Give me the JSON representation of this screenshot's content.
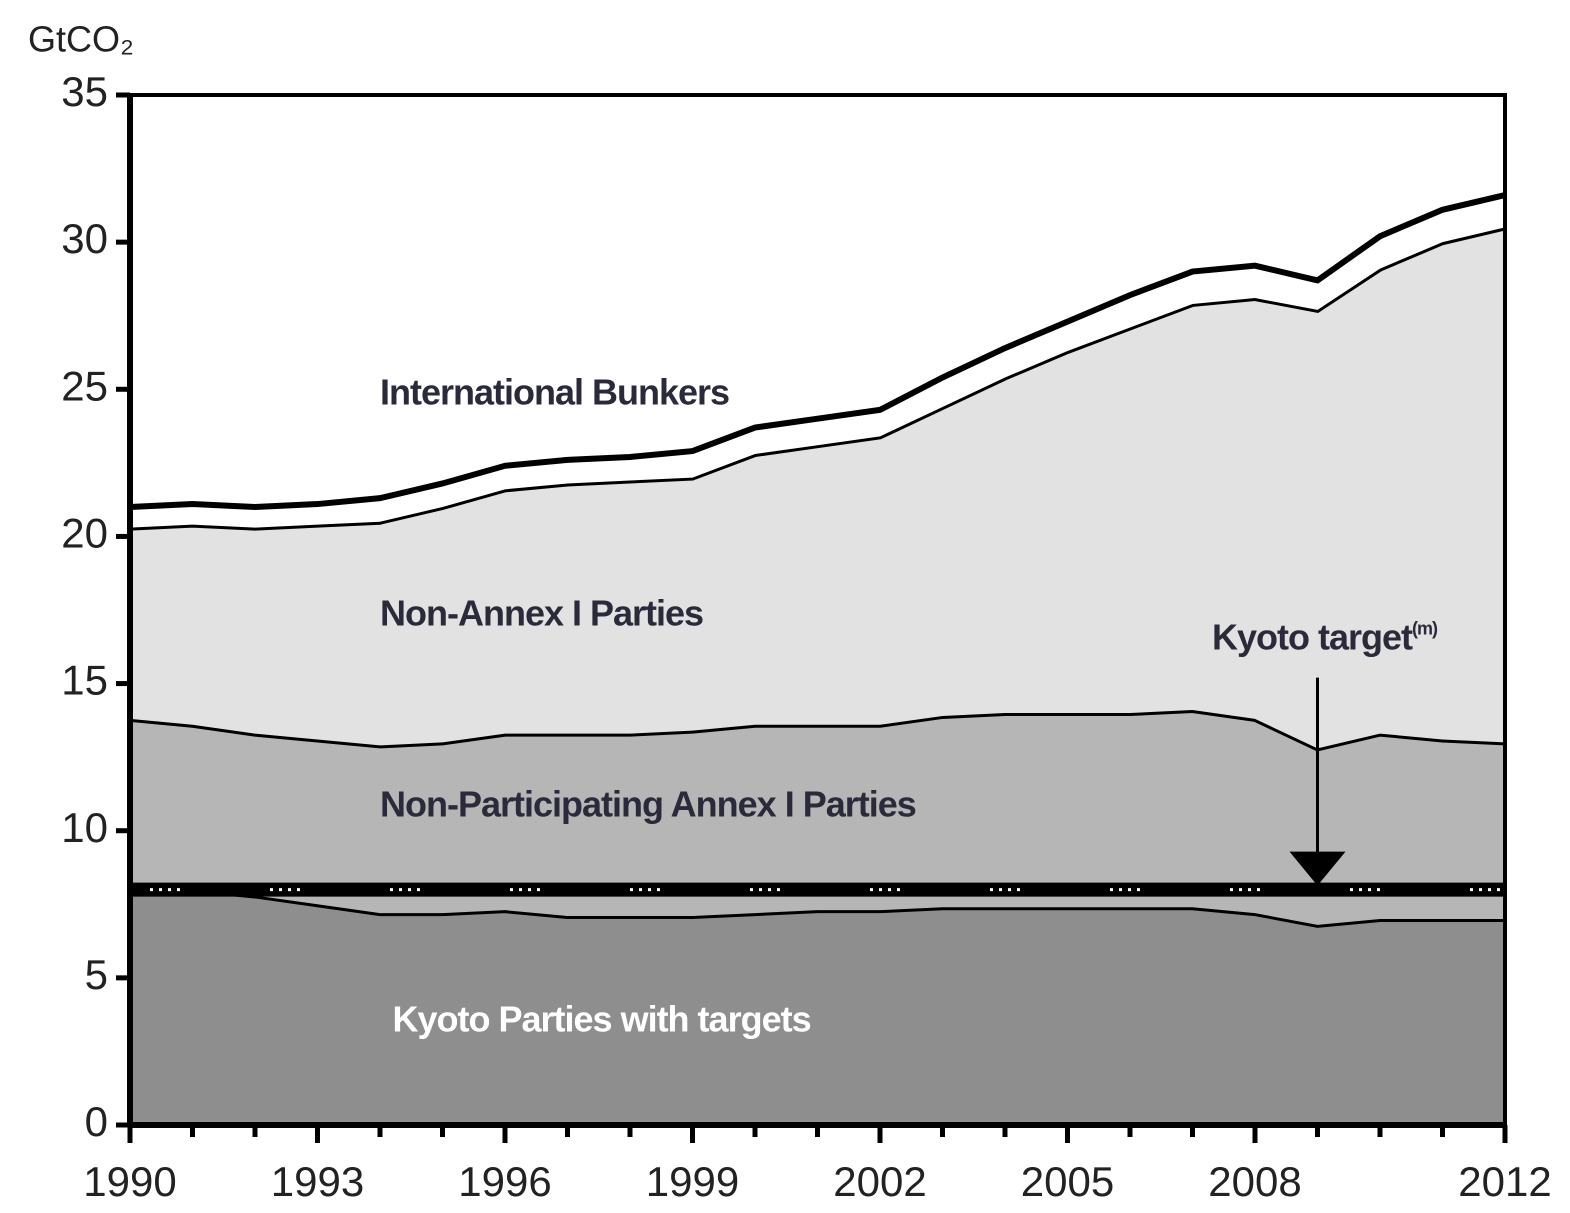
{
  "chart_data": {
    "type": "stacked_area",
    "y_label": "GtCO₂",
    "x": [
      1990,
      1991,
      1992,
      1993,
      1994,
      1995,
      1996,
      1997,
      1998,
      1999,
      2000,
      2001,
      2002,
      2003,
      2004,
      2005,
      2006,
      2007,
      2008,
      2009,
      2010,
      2011,
      2012
    ],
    "series": [
      {
        "name": "Kyoto Parties with targets",
        "color": "#8e8e8e",
        "label_color": "#ffffff",
        "values": [
          8.2,
          8.0,
          7.8,
          7.5,
          7.2,
          7.2,
          7.3,
          7.1,
          7.1,
          7.1,
          7.2,
          7.3,
          7.3,
          7.4,
          7.4,
          7.4,
          7.4,
          7.4,
          7.2,
          6.8,
          7.0,
          7.0,
          7.0
        ]
      },
      {
        "name": "Non-Participating Annex I Parties",
        "color": "#b6b6b6",
        "label_color": "#2a2a3a",
        "values": [
          5.6,
          5.6,
          5.5,
          5.6,
          5.7,
          5.8,
          6.0,
          6.2,
          6.2,
          6.3,
          6.4,
          6.3,
          6.3,
          6.5,
          6.6,
          6.6,
          6.6,
          6.7,
          6.6,
          6.0,
          6.3,
          6.1,
          6.0
        ]
      },
      {
        "name": "Non-Annex I Parties",
        "color": "#e2e2e2",
        "label_color": "#2a2a3a",
        "values": [
          6.5,
          6.8,
          7.0,
          7.3,
          7.6,
          8.0,
          8.3,
          8.5,
          8.6,
          8.6,
          9.2,
          9.5,
          9.8,
          10.5,
          11.4,
          12.3,
          13.1,
          13.8,
          14.3,
          14.9,
          15.8,
          16.9,
          17.5
        ]
      },
      {
        "name": "International Bunkers",
        "color": "#ffffff",
        "label_color": "#2a2a3a",
        "values": [
          0.7,
          0.7,
          0.7,
          0.7,
          0.8,
          0.8,
          0.8,
          0.8,
          0.8,
          0.9,
          0.9,
          0.9,
          0.9,
          1.0,
          1.0,
          1.0,
          1.1,
          1.1,
          1.1,
          1.0,
          1.1,
          1.1,
          1.1
        ]
      }
    ],
    "kyoto_target": {
      "label": "Kyoto target",
      "note": "(m)",
      "value": 8.0,
      "x": 2009
    },
    "xlim": [
      1990,
      2012
    ],
    "xticks": [
      1990,
      1993,
      1996,
      1999,
      2002,
      2005,
      2008,
      2012
    ],
    "ylim": [
      0,
      35
    ],
    "yticks": [
      0,
      5,
      10,
      15,
      20,
      25,
      30,
      35
    ]
  }
}
